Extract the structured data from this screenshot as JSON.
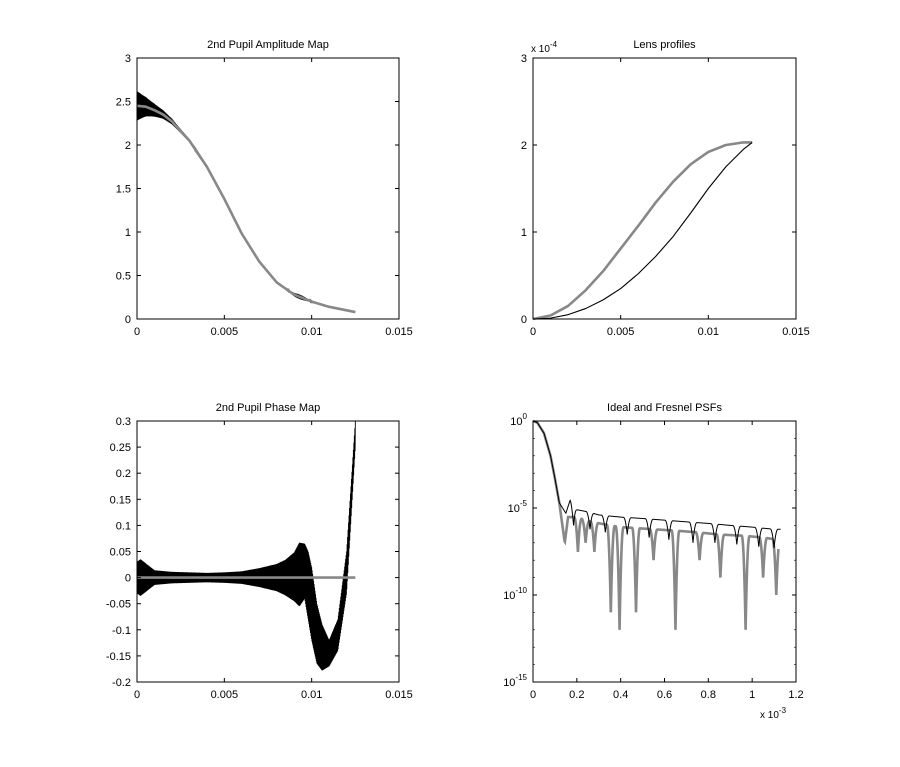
{
  "chart_data": [
    {
      "type": "line",
      "title": "2nd Pupil Amplitude Map",
      "xlabel": "",
      "ylabel": "",
      "xlim": [
        0,
        0.015
      ],
      "ylim": [
        0,
        3
      ],
      "xticks": [
        "0",
        "0.005",
        "0.01",
        "0.015"
      ],
      "yticks": [
        "0",
        "0.5",
        "1",
        "1.5",
        "2",
        "2.5",
        "3"
      ],
      "grid": false,
      "series": [
        {
          "color": "#000000",
          "oscillating": true,
          "x": [
            0,
            0.0005,
            0.001,
            0.0015,
            0.002,
            0.003,
            0.004,
            0.005,
            0.006,
            0.007,
            0.008,
            0.009,
            0.0095,
            0.01,
            0.011,
            0.012,
            0.0125
          ],
          "y": [
            2.45,
            2.44,
            2.4,
            2.35,
            2.27,
            2.05,
            1.75,
            1.38,
            0.98,
            0.66,
            0.42,
            0.28,
            0.24,
            0.2,
            0.14,
            0.1,
            0.08
          ]
        },
        {
          "color": "#888888",
          "oscillating": false,
          "x": [
            0,
            0.0005,
            0.001,
            0.0015,
            0.002,
            0.003,
            0.004,
            0.005,
            0.006,
            0.007,
            0.008,
            0.009,
            0.0095,
            0.01,
            0.011,
            0.012,
            0.0125
          ],
          "y": [
            2.45,
            2.44,
            2.4,
            2.35,
            2.27,
            2.05,
            1.75,
            1.38,
            0.98,
            0.66,
            0.42,
            0.28,
            0.24,
            0.2,
            0.14,
            0.1,
            0.08
          ]
        }
      ]
    },
    {
      "type": "line",
      "title": "Lens profiles",
      "xlabel": "",
      "ylabel": "",
      "y_multiplier": {
        "base": "x 10",
        "exponent": "-4"
      },
      "xlim": [
        0,
        0.015
      ],
      "ylim": [
        0,
        3
      ],
      "xticks": [
        "0",
        "0.005",
        "0.01",
        "0.015"
      ],
      "yticks": [
        "0",
        "1",
        "2",
        "3"
      ],
      "grid": false,
      "series": [
        {
          "color": "#888888",
          "x": [
            0,
            0.001,
            0.002,
            0.003,
            0.004,
            0.005,
            0.006,
            0.007,
            0.008,
            0.009,
            0.01,
            0.011,
            0.012,
            0.0125
          ],
          "y": [
            0,
            0.04,
            0.15,
            0.33,
            0.55,
            0.81,
            1.07,
            1.34,
            1.58,
            1.78,
            1.92,
            2.0,
            2.03,
            2.03
          ]
        },
        {
          "color": "#000000",
          "x": [
            0,
            0.001,
            0.002,
            0.003,
            0.004,
            0.005,
            0.006,
            0.007,
            0.008,
            0.009,
            0.01,
            0.011,
            0.012,
            0.0125
          ],
          "y": [
            0,
            0.01,
            0.05,
            0.12,
            0.22,
            0.35,
            0.52,
            0.72,
            0.95,
            1.22,
            1.5,
            1.75,
            1.95,
            2.03
          ]
        }
      ]
    },
    {
      "type": "line",
      "title": "2nd Pupil Phase Map",
      "xlabel": "",
      "ylabel": "",
      "xlim": [
        0,
        0.015
      ],
      "ylim": [
        -0.2,
        0.3
      ],
      "xticks": [
        "0",
        "0.005",
        "0.01",
        "0.015"
      ],
      "yticks": [
        "-0.2",
        "-0.15",
        "-0.1",
        "-0.05",
        "0",
        "0.05",
        "0.1",
        "0.15",
        "0.2",
        "0.25",
        "0.3"
      ],
      "grid": false,
      "series": [
        {
          "color": "#000000",
          "envelope": true,
          "x": [
            0,
            0.0002,
            0.001,
            0.002,
            0.003,
            0.004,
            0.005,
            0.006,
            0.007,
            0.008,
            0.0085,
            0.009,
            0.0093,
            0.0096,
            0.0098,
            0.01,
            0.0103,
            0.0106,
            0.011,
            0.0115,
            0.012,
            0.0125
          ],
          "upper": [
            0.03,
            0.035,
            0.014,
            0.011,
            0.01,
            0.009,
            0.01,
            0.012,
            0.018,
            0.026,
            0.034,
            0.048,
            0.067,
            0.065,
            0.05,
            0.02,
            -0.05,
            -0.09,
            -0.12,
            -0.08,
            0.05,
            0.3
          ],
          "lower": [
            -0.03,
            -0.035,
            -0.014,
            -0.011,
            -0.01,
            -0.009,
            -0.01,
            -0.012,
            -0.018,
            -0.026,
            -0.034,
            -0.045,
            -0.055,
            -0.04,
            -0.08,
            -0.12,
            -0.165,
            -0.178,
            -0.17,
            -0.14,
            -0.03,
            0.25
          ]
        },
        {
          "color": "#888888",
          "x": [
            0,
            0.0125
          ],
          "y": [
            0,
            0
          ]
        }
      ]
    },
    {
      "type": "line",
      "title": "Ideal and Fresnel PSFs",
      "xlabel": "",
      "ylabel": "",
      "yscale": "log",
      "x_multiplier": {
        "base": "x 10",
        "exponent": "-3"
      },
      "xlim": [
        0,
        1.2
      ],
      "ylim": [
        1e-15,
        1
      ],
      "xticks": [
        "0",
        "0.2",
        "0.4",
        "0.6",
        "0.8",
        "1",
        "1.2"
      ],
      "yticks": [
        {
          "base": "10",
          "exponent": "0"
        },
        {
          "base": "10",
          "exponent": "-5"
        },
        {
          "base": "10",
          "exponent": "-10"
        },
        {
          "base": "10",
          "exponent": "-15"
        }
      ],
      "grid": false,
      "series": [
        {
          "color": "#888888",
          "x": [
            0,
            0.02,
            0.05,
            0.08,
            0.1,
            0.12,
            0.145,
            0.16,
            0.2,
            0.24,
            0.28,
            0.35,
            0.4,
            0.47,
            0.55,
            0.65,
            0.75,
            0.85,
            0.97,
            1.05,
            1.12
          ],
          "y": [
            1,
            0.8,
            0.2,
            0.01,
            0.0005,
            2e-05,
            1e-07,
            3e-06,
            3e-06,
            2e-06,
            1.5e-06,
            1e-06,
            8e-07,
            7e-07,
            6e-07,
            5e-07,
            4e-07,
            3e-07,
            2.5e-07,
            2e-07,
            1.5e-07
          ],
          "minima_x": [
            0.205,
            0.24,
            0.28,
            0.355,
            0.395,
            0.47,
            0.55,
            0.65,
            0.76,
            0.855,
            0.97,
            1.05,
            1.11
          ],
          "minima_y": [
            3e-08,
            1e-07,
            3e-08,
            1e-11,
            1e-12,
            1e-11,
            1e-08,
            1e-12,
            1e-08,
            1e-09,
            1e-12,
            1e-09,
            1e-10
          ]
        },
        {
          "color": "#000000",
          "x": [
            0,
            0.02,
            0.05,
            0.08,
            0.1,
            0.12,
            0.15,
            0.17,
            0.2,
            0.25,
            0.3,
            0.4,
            0.5,
            0.6,
            0.7,
            0.8,
            0.9,
            1.0,
            1.1,
            1.13
          ],
          "y": [
            1,
            0.8,
            0.2,
            0.01,
            0.0005,
            2e-05,
            5e-06,
            3e-05,
            8e-06,
            6e-06,
            4e-06,
            3e-06,
            2.5e-06,
            2e-06,
            1.6e-06,
            1.3e-06,
            1e-06,
            8e-07,
            6e-07,
            6e-07
          ],
          "minima_x": [
            0.185,
            0.26,
            0.33,
            0.43,
            0.53,
            0.62,
            0.73,
            0.83,
            0.93,
            1.03,
            1.1
          ],
          "minima_y": [
            1e-06,
            6e-07,
            4e-07,
            3e-07,
            2e-07,
            1.5e-07,
            1e-07,
            1e-07,
            8e-08,
            6e-08,
            5e-08
          ]
        }
      ]
    }
  ]
}
